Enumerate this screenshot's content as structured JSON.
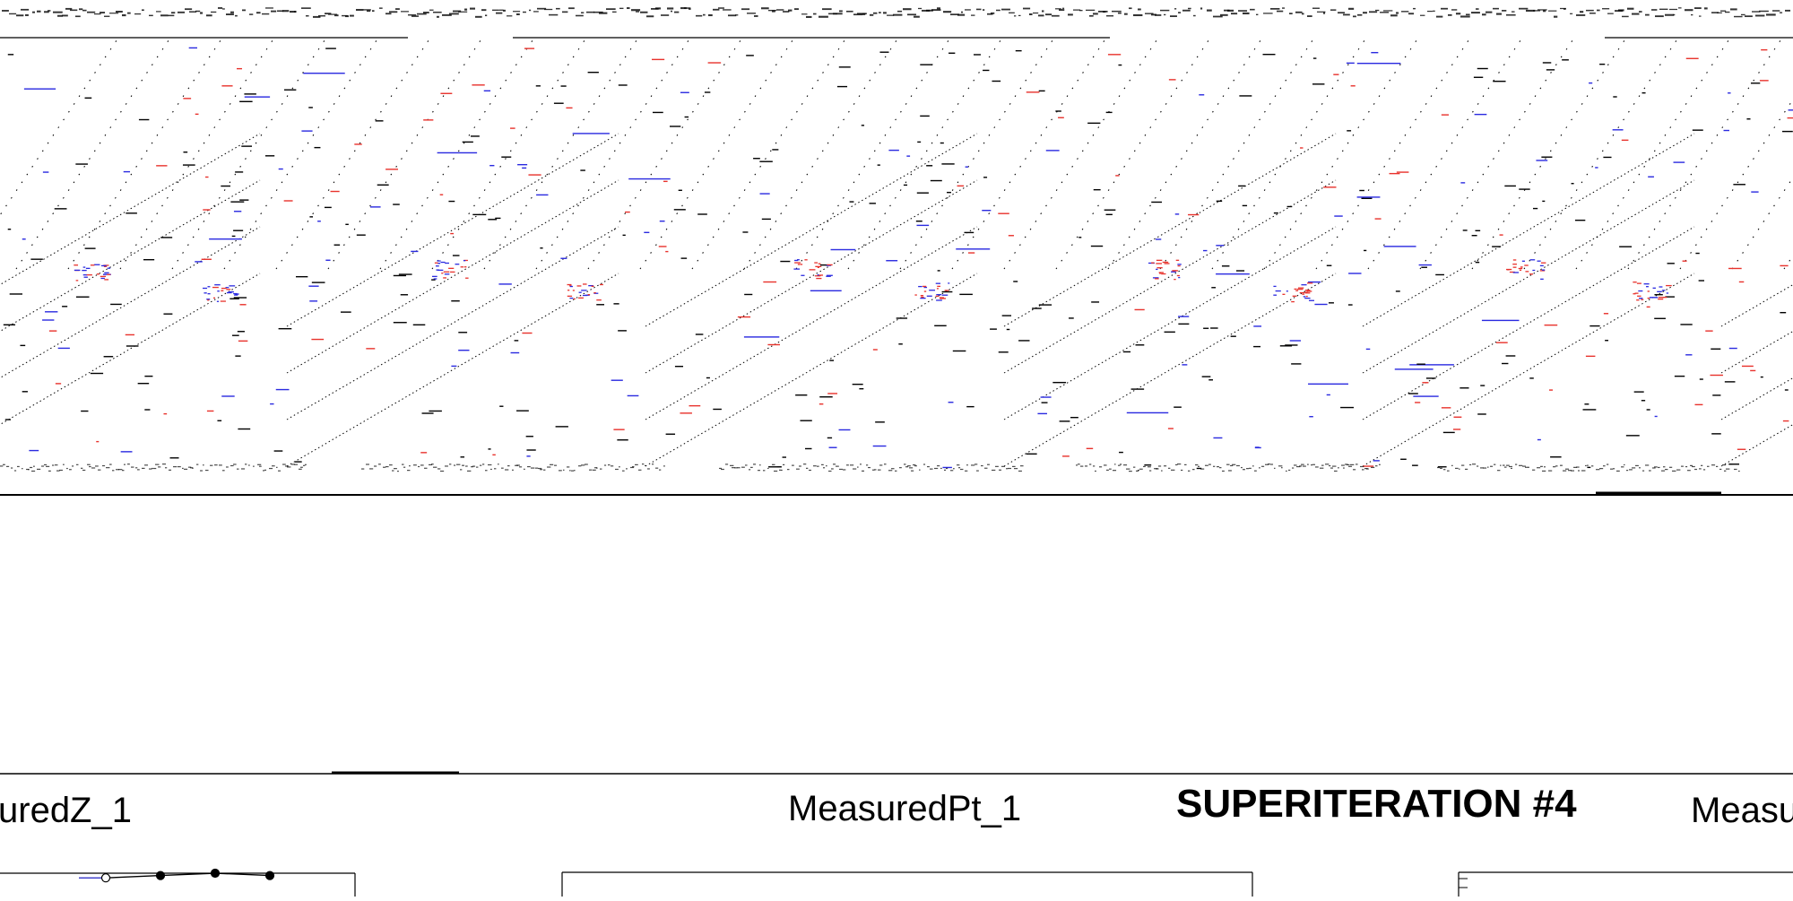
{
  "labels": {
    "left_panel_title": "uredZ_1",
    "middle_panel_title": "MeasuredPt_1",
    "superiteration_title": "SUPERITERATION #4",
    "right_panel_title": "Measu"
  },
  "colors": {
    "ink": "#000000",
    "red": "#e8322c",
    "blue": "#2a2ae0",
    "page": "#ffffff"
  },
  "chart_data": [
    {
      "type": "scatter",
      "title": "",
      "note": "dense event-display panel; marks are illegible at this resolution",
      "pattern": "repeated diagonal dotted tracks with red and blue hit clusters",
      "grid": false
    },
    {
      "type": "line",
      "title": "uredZ_1",
      "series": [
        {
          "x": [
            1,
            2,
            3,
            4
          ],
          "values": [
            0.98,
            0.99,
            1.0,
            0.99
          ]
        }
      ],
      "hollow_points": [
        1
      ]
    },
    {
      "type": "line",
      "title": "MeasuredPt_1",
      "series": []
    },
    {
      "type": "line",
      "title": "Measu",
      "series": []
    }
  ]
}
